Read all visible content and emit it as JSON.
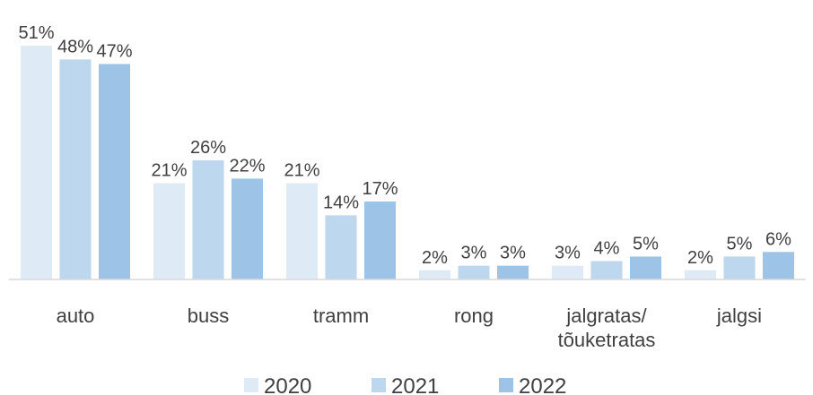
{
  "chart_data": {
    "type": "bar",
    "categories": [
      "auto",
      "buss",
      "tramm",
      "rong",
      "jalgratas/ tõuketratas",
      "jalgsi"
    ],
    "series": [
      {
        "name": "2020",
        "color": "#deebf7",
        "values": [
          51,
          21,
          21,
          2,
          3,
          2
        ],
        "value_labels": [
          "51%",
          "21%",
          "21%",
          "2%",
          "3%",
          "2%"
        ]
      },
      {
        "name": "2021",
        "color": "#bdd7ee",
        "values": [
          48,
          26,
          14,
          3,
          4,
          5
        ],
        "value_labels": [
          "48%",
          "26%",
          "14%",
          "3%",
          "4%",
          "5%"
        ]
      },
      {
        "name": "2022",
        "color": "#9dc3e6",
        "values": [
          47,
          22,
          17,
          3,
          5,
          6
        ],
        "value_labels": [
          "47%",
          "22%",
          "17%",
          "3%",
          "5%",
          "6%"
        ]
      }
    ],
    "legend": "bottom"
  }
}
